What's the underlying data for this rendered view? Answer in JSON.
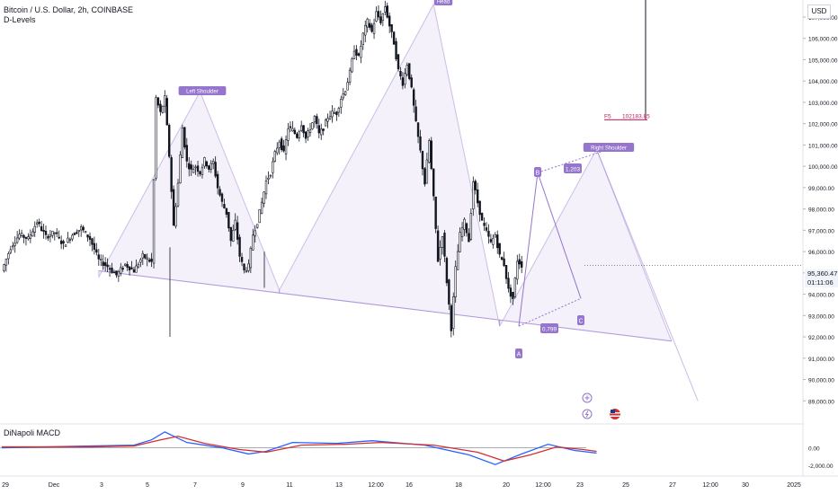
{
  "header": {
    "title": "Bitcoin / U.S. Dollar, 2h, COINBASE",
    "indicator": "D-Levels"
  },
  "currency": "USD",
  "macd": {
    "label": "DiNapoli MACD",
    "ticks": [
      "0.00",
      "-2,000.00"
    ]
  },
  "last_price": {
    "value": "95,360.47",
    "countdown": "01:11:06"
  },
  "chart_data": {
    "type": "candlestick",
    "price_ticks": [
      107000,
      106000,
      105000,
      104000,
      103000,
      102000,
      101000,
      100000,
      99000,
      98000,
      97000,
      96000,
      95000,
      94000,
      93000,
      92000,
      91000,
      90000,
      89000
    ],
    "x_ticks": [
      "29",
      "Dec",
      "3",
      "5",
      "7",
      "9",
      "11",
      "13",
      "12:00",
      "16",
      "18",
      "20",
      "12:00",
      "23",
      "25",
      "27",
      "12:00",
      "30",
      "2025"
    ],
    "ylim": [
      88000,
      107800
    ],
    "close_path": [
      [
        0,
        95100
      ],
      [
        2,
        96200
      ],
      [
        4,
        96800
      ],
      [
        6,
        96600
      ],
      [
        8,
        97400
      ],
      [
        10,
        96700
      ],
      [
        12,
        96900
      ],
      [
        14,
        96300
      ],
      [
        16,
        96800
      ],
      [
        18,
        97100
      ],
      [
        20,
        96600
      ],
      [
        22,
        95600
      ],
      [
        24,
        95300
      ],
      [
        26,
        94900
      ],
      [
        28,
        95400
      ],
      [
        30,
        95100
      ],
      [
        32,
        95800
      ],
      [
        34,
        95500
      ],
      [
        35,
        103200
      ],
      [
        36,
        102500
      ],
      [
        37,
        103200
      ],
      [
        38,
        100500
      ],
      [
        39,
        97200
      ],
      [
        40,
        99200
      ],
      [
        41,
        101800
      ],
      [
        42,
        100200
      ],
      [
        43,
        99800
      ],
      [
        44,
        100000
      ],
      [
        45,
        99700
      ],
      [
        46,
        100300
      ],
      [
        47,
        99900
      ],
      [
        48,
        100200
      ],
      [
        49,
        99000
      ],
      [
        50,
        98300
      ],
      [
        51,
        97800
      ],
      [
        52,
        96500
      ],
      [
        53,
        97400
      ],
      [
        54,
        95800
      ],
      [
        55,
        95100
      ],
      [
        56,
        95300
      ],
      [
        57,
        96800
      ],
      [
        58,
        97400
      ],
      [
        59,
        98300
      ],
      [
        60,
        99300
      ],
      [
        61,
        99700
      ],
      [
        62,
        100600
      ],
      [
        63,
        101200
      ],
      [
        64,
        100600
      ],
      [
        65,
        101800
      ],
      [
        66,
        101700
      ],
      [
        67,
        101400
      ],
      [
        68,
        102000
      ],
      [
        69,
        101300
      ],
      [
        70,
        101800
      ],
      [
        71,
        102300
      ],
      [
        72,
        101500
      ],
      [
        73,
        101800
      ],
      [
        74,
        102300
      ],
      [
        75,
        102500
      ],
      [
        76,
        102500
      ],
      [
        77,
        103200
      ],
      [
        78,
        103600
      ],
      [
        79,
        104400
      ],
      [
        80,
        105500
      ],
      [
        81,
        105100
      ],
      [
        82,
        106200
      ],
      [
        83,
        106800
      ],
      [
        84,
        106300
      ],
      [
        85,
        107200
      ],
      [
        86,
        106800
      ],
      [
        87,
        107500
      ],
      [
        88,
        106600
      ],
      [
        89,
        105800
      ],
      [
        90,
        104500
      ],
      [
        91,
        103900
      ],
      [
        92,
        104800
      ],
      [
        93,
        103600
      ],
      [
        94,
        102000
      ],
      [
        95,
        100700
      ],
      [
        96,
        99200
      ],
      [
        97,
        101200
      ],
      [
        98,
        98500
      ],
      [
        99,
        95600
      ],
      [
        100,
        96800
      ],
      [
        101,
        94600
      ],
      [
        102,
        92400
      ],
      [
        103,
        95200
      ],
      [
        104,
        96800
      ],
      [
        105,
        97400
      ],
      [
        106,
        96500
      ],
      [
        107,
        99300
      ],
      [
        108,
        98300
      ],
      [
        109,
        97400
      ],
      [
        110,
        96900
      ],
      [
        111,
        96400
      ],
      [
        112,
        96800
      ],
      [
        113,
        95800
      ],
      [
        114,
        95400
      ],
      [
        115,
        94200
      ],
      [
        116,
        93800
      ],
      [
        117,
        95600
      ],
      [
        118,
        95360
      ]
    ],
    "pattern": {
      "labels": [
        "Left Shoulder",
        "Head",
        "Right Shoulder"
      ],
      "left_shoulder": [
        [
          22,
          94800
        ],
        [
          45,
          103500
        ],
        [
          63,
          94200
        ]
      ],
      "head": [
        [
          63,
          94200
        ],
        [
          98,
          107600
        ],
        [
          113,
          92500
        ]
      ],
      "right_shoulder": [
        [
          113,
          92500
        ],
        [
          135,
          100800
        ],
        [
          152,
          91800
        ]
      ],
      "neckline": [
        [
          22,
          95100
        ],
        [
          152,
          91800
        ]
      ],
      "projection": [
        [
          135,
          100800
        ],
        [
          158,
          89000
        ]
      ]
    },
    "abc": {
      "points": [
        {
          "label": "A",
          "i": 113,
          "y": 92500
        },
        {
          "label": "B",
          "i": 118,
          "y": 99700
        },
        {
          "label": "C",
          "i": 127,
          "y": 93800
        }
      ],
      "ratios": [
        "1.203",
        "0.799"
      ]
    },
    "target": {
      "label": "F5",
      "value": "102183.85"
    },
    "macd_series": {
      "macd": [
        [
          0,
          0
        ],
        [
          20,
          200
        ],
        [
          30,
          300
        ],
        [
          34,
          900
        ],
        [
          37,
          1800
        ],
        [
          42,
          600
        ],
        [
          50,
          0
        ],
        [
          56,
          -700
        ],
        [
          60,
          -400
        ],
        [
          66,
          600
        ],
        [
          76,
          500
        ],
        [
          84,
          800
        ],
        [
          96,
          300
        ],
        [
          106,
          -800
        ],
        [
          112,
          -1900
        ],
        [
          118,
          -700
        ],
        [
          124,
          400
        ],
        [
          130,
          -300
        ],
        [
          135,
          -600
        ]
      ],
      "signal": [
        [
          0,
          100
        ],
        [
          20,
          100
        ],
        [
          30,
          200
        ],
        [
          36,
          900
        ],
        [
          40,
          1300
        ],
        [
          46,
          500
        ],
        [
          54,
          -200
        ],
        [
          60,
          -500
        ],
        [
          68,
          300
        ],
        [
          78,
          400
        ],
        [
          86,
          600
        ],
        [
          98,
          300
        ],
        [
          108,
          -500
        ],
        [
          114,
          -1500
        ],
        [
          120,
          -800
        ],
        [
          126,
          100
        ],
        [
          132,
          -200
        ],
        [
          135,
          -400
        ]
      ]
    }
  }
}
